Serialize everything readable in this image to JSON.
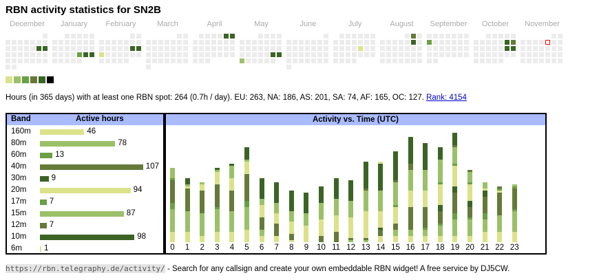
{
  "title": "RBN activity statistics for SN2B",
  "calendar": {
    "months": [
      {
        "name": "December",
        "offset": 6,
        "days": 31,
        "active": [
          [
            14,
            "D"
          ],
          [
            15,
            "D"
          ]
        ]
      },
      {
        "name": "January",
        "offset": 2,
        "days": 31,
        "active": [
          [
            24,
            "M"
          ],
          [
            25,
            "D"
          ],
          [
            26,
            "D"
          ]
        ]
      },
      {
        "name": "February",
        "offset": 5,
        "days": 28,
        "active": [
          [
            15,
            "D"
          ],
          [
            16,
            "D"
          ],
          [
            17,
            "Y"
          ]
        ]
      },
      {
        "name": "March",
        "offset": 5,
        "days": 31,
        "active": []
      },
      {
        "name": "April",
        "offset": 1,
        "days": 30,
        "active": [
          [
            5,
            "D"
          ],
          [
            6,
            "D"
          ]
        ]
      },
      {
        "name": "May",
        "offset": 3,
        "days": 31,
        "active": [
          [
            24,
            "D"
          ],
          [
            25,
            "D"
          ],
          [
            26,
            "L"
          ]
        ]
      },
      {
        "name": "June",
        "offset": 6,
        "days": 30,
        "active": []
      },
      {
        "name": "July",
        "offset": 1,
        "days": 31,
        "active": [
          [
            18,
            "Y"
          ]
        ]
      },
      {
        "name": "August",
        "offset": 4,
        "days": 31,
        "active": [
          [
            2,
            "O"
          ],
          [
            9,
            "D"
          ]
        ]
      },
      {
        "name": "September",
        "offset": 0,
        "days": 30,
        "active": [
          [
            8,
            "M"
          ]
        ]
      },
      {
        "name": "October",
        "offset": 2,
        "days": 31,
        "active": [
          [
            11,
            "D"
          ],
          [
            12,
            "O"
          ],
          [
            18,
            "D"
          ],
          [
            19,
            "D"
          ]
        ]
      },
      {
        "name": "November",
        "offset": 5,
        "days": 30,
        "active": [],
        "today": 7
      }
    ],
    "legend_colors": [
      "#dbe28a",
      "#9bc068",
      "#6aa043",
      "#657a39",
      "#3b6424",
      "#000000"
    ]
  },
  "colors": {
    "Y": "#dbe28a",
    "L": "#9bc068",
    "M": "#6aa043",
    "O": "#657a39",
    "D": "#3b6424"
  },
  "summary": {
    "text": "Hours (in 365 days) with at least one RBN spot: 264 (0.7h / day). EU: 263, NA: 186, AS: 201, SA: 74, AF: 165, OC: 127. ",
    "rank_link": "Rank: 4154"
  },
  "bands_table": {
    "header_band": "Band",
    "header_hours": "Active hours",
    "rows": [
      {
        "band": "160m",
        "hours": 46,
        "color": "Y"
      },
      {
        "band": "80m",
        "hours": 78,
        "color": "L"
      },
      {
        "band": "60m",
        "hours": 13,
        "color": "M"
      },
      {
        "band": "40m",
        "hours": 107,
        "color": "O"
      },
      {
        "band": "30m",
        "hours": 9,
        "color": "D"
      },
      {
        "band": "20m",
        "hours": 94,
        "color": "Y"
      },
      {
        "band": "17m",
        "hours": 7,
        "color": "M"
      },
      {
        "band": "15m",
        "hours": 87,
        "color": "L"
      },
      {
        "band": "12m",
        "hours": 7,
        "color": "O"
      },
      {
        "band": "10m",
        "hours": 98,
        "color": "D"
      },
      {
        "band": "6m",
        "hours": 1,
        "color": "Y"
      }
    ]
  },
  "chart_data": {
    "type": "bar",
    "title": "Activity vs. Time (UTC)",
    "stacked": true,
    "categories": [
      "0",
      "1",
      "2",
      "3",
      "4",
      "5",
      "6",
      "7",
      "8",
      "9",
      "10",
      "11",
      "12",
      "13",
      "14",
      "15",
      "16",
      "17",
      "18",
      "19",
      "20",
      "21",
      "22",
      "23"
    ],
    "stacks_bottom_up": [
      [
        [
          "Y",
          5
        ],
        [
          "L",
          11
        ],
        [
          "M",
          3
        ],
        [
          "O",
          11
        ],
        [
          "M",
          1
        ],
        [
          "L",
          5
        ]
      ],
      [
        [
          "Y",
          5
        ],
        [
          "L",
          10
        ],
        [
          "O",
          11
        ],
        [
          "Y",
          1
        ],
        [
          "L",
          1
        ],
        [
          "D",
          3
        ]
      ],
      [
        [
          "Y",
          3
        ],
        [
          "L",
          11
        ],
        [
          "O",
          11
        ],
        [
          "Y",
          3
        ],
        [
          "L",
          1
        ]
      ],
      [
        [
          "Y",
          5
        ],
        [
          "L",
          11
        ],
        [
          "M",
          1
        ],
        [
          "O",
          11
        ],
        [
          "Y",
          6
        ],
        [
          "L",
          1
        ],
        [
          "D",
          1
        ]
      ],
      [
        [
          "Y",
          5
        ],
        [
          "L",
          10
        ],
        [
          "O",
          10
        ],
        [
          "Y",
          6
        ],
        [
          "L",
          6
        ],
        [
          "D",
          1
        ]
      ],
      [
        [
          "Y",
          6
        ],
        [
          "L",
          11
        ],
        [
          "M",
          3
        ],
        [
          "O",
          13
        ],
        [
          "Y",
          6
        ],
        [
          "L",
          1
        ],
        [
          "D",
          6
        ]
      ],
      [
        [
          "Y",
          3
        ],
        [
          "L",
          3
        ],
        [
          "O",
          6
        ],
        [
          "Y",
          6
        ],
        [
          "L",
          3
        ],
        [
          "D",
          10
        ]
      ],
      [
        [
          "Y",
          3
        ],
        [
          "O",
          6
        ],
        [
          "Y",
          5
        ],
        [
          "L",
          5
        ],
        [
          "D",
          10
        ]
      ],
      [
        [
          "Y",
          1
        ],
        [
          "O",
          3
        ],
        [
          "Y",
          6
        ],
        [
          "L",
          5
        ],
        [
          "D",
          10
        ]
      ],
      [
        [
          "Y",
          8
        ],
        [
          "L",
          6
        ],
        [
          "D",
          10
        ]
      ],
      [
        [
          "O",
          3
        ],
        [
          "Y",
          8
        ],
        [
          "L",
          8
        ],
        [
          "D",
          8
        ]
      ],
      [
        [
          "O",
          5
        ],
        [
          "Y",
          8
        ],
        [
          "L",
          8
        ],
        [
          "D",
          10
        ]
      ],
      [
        [
          "L",
          1
        ],
        [
          "O",
          1
        ],
        [
          "Y",
          10
        ],
        [
          "L",
          8
        ],
        [
          "D",
          10
        ]
      ],
      [
        [
          "L",
          1
        ],
        [
          "O",
          1
        ],
        [
          "Y",
          13
        ],
        [
          "L",
          10
        ],
        [
          "O",
          1
        ],
        [
          "D",
          13
        ]
      ],
      [
        [
          "Y",
          3
        ],
        [
          "O",
          3
        ],
        [
          "D",
          1
        ],
        [
          "Y",
          8
        ],
        [
          "L",
          10
        ],
        [
          "D",
          13
        ],
        [
          "Y",
          1
        ]
      ],
      [
        [
          "Y",
          3
        ],
        [
          "L",
          3
        ],
        [
          "O",
          3
        ],
        [
          "Y",
          8
        ],
        [
          "M",
          1
        ],
        [
          "L",
          11
        ],
        [
          "O",
          1
        ],
        [
          "D",
          14
        ]
      ],
      [
        [
          "Y",
          3
        ],
        [
          "L",
          3
        ],
        [
          "O",
          11
        ],
        [
          "Y",
          8
        ],
        [
          "L",
          10
        ],
        [
          "O",
          3
        ],
        [
          "D",
          13
        ]
      ],
      [
        [
          "Y",
          3
        ],
        [
          "L",
          3
        ],
        [
          "M",
          1
        ],
        [
          "O",
          10
        ],
        [
          "Y",
          8
        ],
        [
          "L",
          10
        ],
        [
          "D",
          13
        ]
      ],
      [
        [
          "Y",
          3
        ],
        [
          "L",
          5
        ],
        [
          "M",
          1
        ],
        [
          "O",
          6
        ],
        [
          "D",
          3
        ],
        [
          "Y",
          10
        ],
        [
          "M",
          1
        ],
        [
          "L",
          11
        ],
        [
          "D",
          6
        ]
      ],
      [
        [
          "Y",
          3
        ],
        [
          "L",
          8
        ],
        [
          "M",
          3
        ],
        [
          "O",
          10
        ],
        [
          "D",
          3
        ],
        [
          "Y",
          10
        ],
        [
          "M",
          1
        ],
        [
          "L",
          8
        ],
        [
          "O",
          1
        ],
        [
          "D",
          6
        ]
      ],
      [
        [
          "Y",
          3
        ],
        [
          "L",
          8
        ],
        [
          "M",
          1
        ],
        [
          "O",
          5
        ],
        [
          "D",
          3
        ],
        [
          "Y",
          8
        ],
        [
          "M",
          1
        ],
        [
          "L",
          5
        ],
        [
          "O",
          1
        ]
      ],
      [
        [
          "Y",
          5
        ],
        [
          "L",
          6
        ],
        [
          "M",
          3
        ],
        [
          "O",
          8
        ],
        [
          "D",
          3
        ],
        [
          "Y",
          1
        ],
        [
          "L",
          3
        ]
      ],
      [
        [
          "Y",
          5
        ],
        [
          "L",
          8
        ],
        [
          "O",
          11
        ],
        [
          "Y",
          1
        ],
        [
          "M",
          1
        ],
        [
          "O",
          1
        ]
      ],
      [
        [
          "Y",
          5
        ],
        [
          "L",
          10
        ],
        [
          "M",
          1
        ],
        [
          "O",
          10
        ],
        [
          "M",
          1
        ],
        [
          "L",
          1
        ]
      ]
    ]
  },
  "footer": {
    "url": "https://rbn.telegraphy.de/activity/",
    "text": " - Search for any callsign and create your own embeddable RBN widget! A free service by DJ5CW."
  }
}
